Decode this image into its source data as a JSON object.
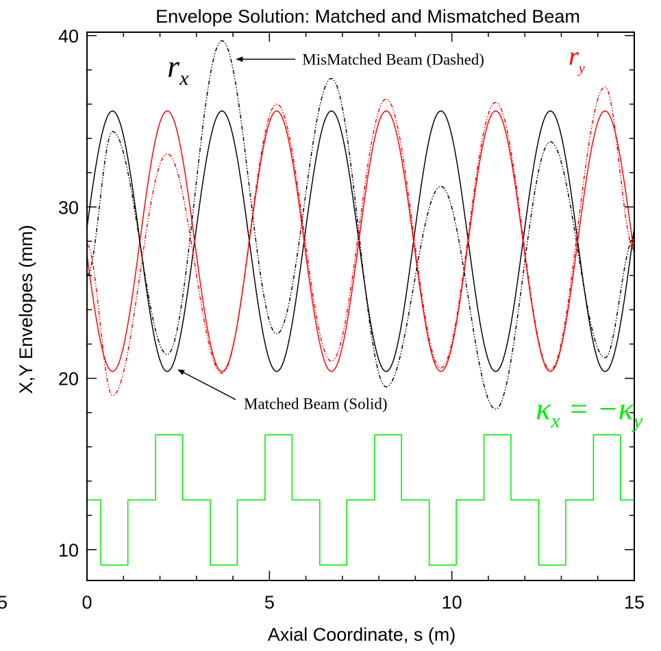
{
  "chart_data": {
    "type": "line",
    "title": "Envelope Solution: Matched and Mismatched Beam",
    "xlabel": "Axial Coordinate, s (m)",
    "ylabel": "X,Y Envelopes (mm)",
    "xlim": [
      0,
      15
    ],
    "ylim": [
      8.2,
      40.2
    ],
    "x_ticks": [
      0,
      5,
      10,
      15
    ],
    "x_tick_labels": [
      "0",
      "5",
      "10",
      "15"
    ],
    "x_edge_label": "5",
    "y_ticks": [
      10,
      20,
      30,
      40
    ],
    "y_tick_labels": [
      "10",
      "20",
      "30",
      "40"
    ],
    "colors": {
      "rx": "#000000",
      "ry": "#ff0000",
      "kappa": "#00ee00",
      "axes": "#000000"
    },
    "lattice_period_m": 3.0,
    "series": [
      {
        "name": "r_x",
        "style": "solid",
        "color": "#000000",
        "model": "matched",
        "center": 28.0,
        "amplitude": 7.6,
        "period": 3.0,
        "phase_s": 0.7
      },
      {
        "name": "r_y",
        "style": "solid",
        "color": "#ff0000",
        "model": "matched",
        "center": 28.0,
        "amplitude": 7.6,
        "period": 3.0,
        "phase_s": 2.2
      },
      {
        "name": "r_x",
        "style": "dash-dot",
        "color": "#000000",
        "model": "peaks",
        "points": [
          [
            0.0,
            26.0
          ],
          [
            0.7,
            34.4
          ],
          [
            2.2,
            21.4
          ],
          [
            3.7,
            39.7
          ],
          [
            5.2,
            22.6
          ],
          [
            6.7,
            37.5
          ],
          [
            8.2,
            19.5
          ],
          [
            9.7,
            31.2
          ],
          [
            11.2,
            18.2
          ],
          [
            12.7,
            33.8
          ],
          [
            14.2,
            21.2
          ],
          [
            15.0,
            28.2
          ]
        ]
      },
      {
        "name": "r_y",
        "style": "dash-dot",
        "color": "#ff0000",
        "model": "peaks",
        "points": [
          [
            0.0,
            27.8
          ],
          [
            0.7,
            19.0
          ],
          [
            2.2,
            33.1
          ],
          [
            3.7,
            20.3
          ],
          [
            5.2,
            36.0
          ],
          [
            6.7,
            21.0
          ],
          [
            8.2,
            36.3
          ],
          [
            9.7,
            20.6
          ],
          [
            11.2,
            36.1
          ],
          [
            12.7,
            20.5
          ],
          [
            14.2,
            37.0
          ],
          [
            15.0,
            27.5
          ]
        ]
      },
      {
        "name": "kappa",
        "style": "step",
        "color": "#00ee00",
        "levels": {
          "low": 9.1,
          "mid": 12.9,
          "high": 16.7
        },
        "segments": [
          [
            0.0,
            0.38,
            "mid"
          ],
          [
            0.38,
            1.12,
            "low"
          ],
          [
            1.12,
            1.88,
            "mid"
          ],
          [
            1.88,
            2.62,
            "high"
          ],
          [
            2.62,
            3.38,
            "mid"
          ],
          [
            3.38,
            4.12,
            "low"
          ],
          [
            4.12,
            4.88,
            "mid"
          ],
          [
            4.88,
            5.62,
            "high"
          ],
          [
            5.62,
            6.38,
            "mid"
          ],
          [
            6.38,
            7.12,
            "low"
          ],
          [
            7.12,
            7.88,
            "mid"
          ],
          [
            7.88,
            8.62,
            "high"
          ],
          [
            8.62,
            9.38,
            "mid"
          ],
          [
            9.38,
            10.12,
            "low"
          ],
          [
            10.12,
            10.88,
            "mid"
          ],
          [
            10.88,
            11.62,
            "high"
          ],
          [
            11.62,
            12.38,
            "mid"
          ],
          [
            12.38,
            13.12,
            "low"
          ],
          [
            13.12,
            13.88,
            "mid"
          ],
          [
            13.88,
            14.62,
            "high"
          ],
          [
            14.62,
            15.0,
            "mid"
          ]
        ]
      }
    ],
    "annotations": [
      {
        "text": "MisMatched Beam (Dashed)",
        "x": 5.9,
        "y": 38.3,
        "arrow_to": [
          4.1,
          38.3
        ]
      },
      {
        "text": "Matched Beam (Solid)",
        "x": 4.3,
        "y": 18.2,
        "arrow_to": [
          2.5,
          20.5
        ]
      },
      {
        "text": "r",
        "sub": "x",
        "x": 2.2,
        "y": 37.6,
        "color": "#000000"
      },
      {
        "text": "r",
        "sub": "y",
        "x": 13.2,
        "y": 38.3,
        "color": "#ff0000"
      },
      {
        "text": "κ",
        "sub": "x",
        "rest": " = −κ",
        "sub2": "y",
        "x": 12.3,
        "y": 17.6,
        "color": "#00ee00"
      }
    ]
  }
}
